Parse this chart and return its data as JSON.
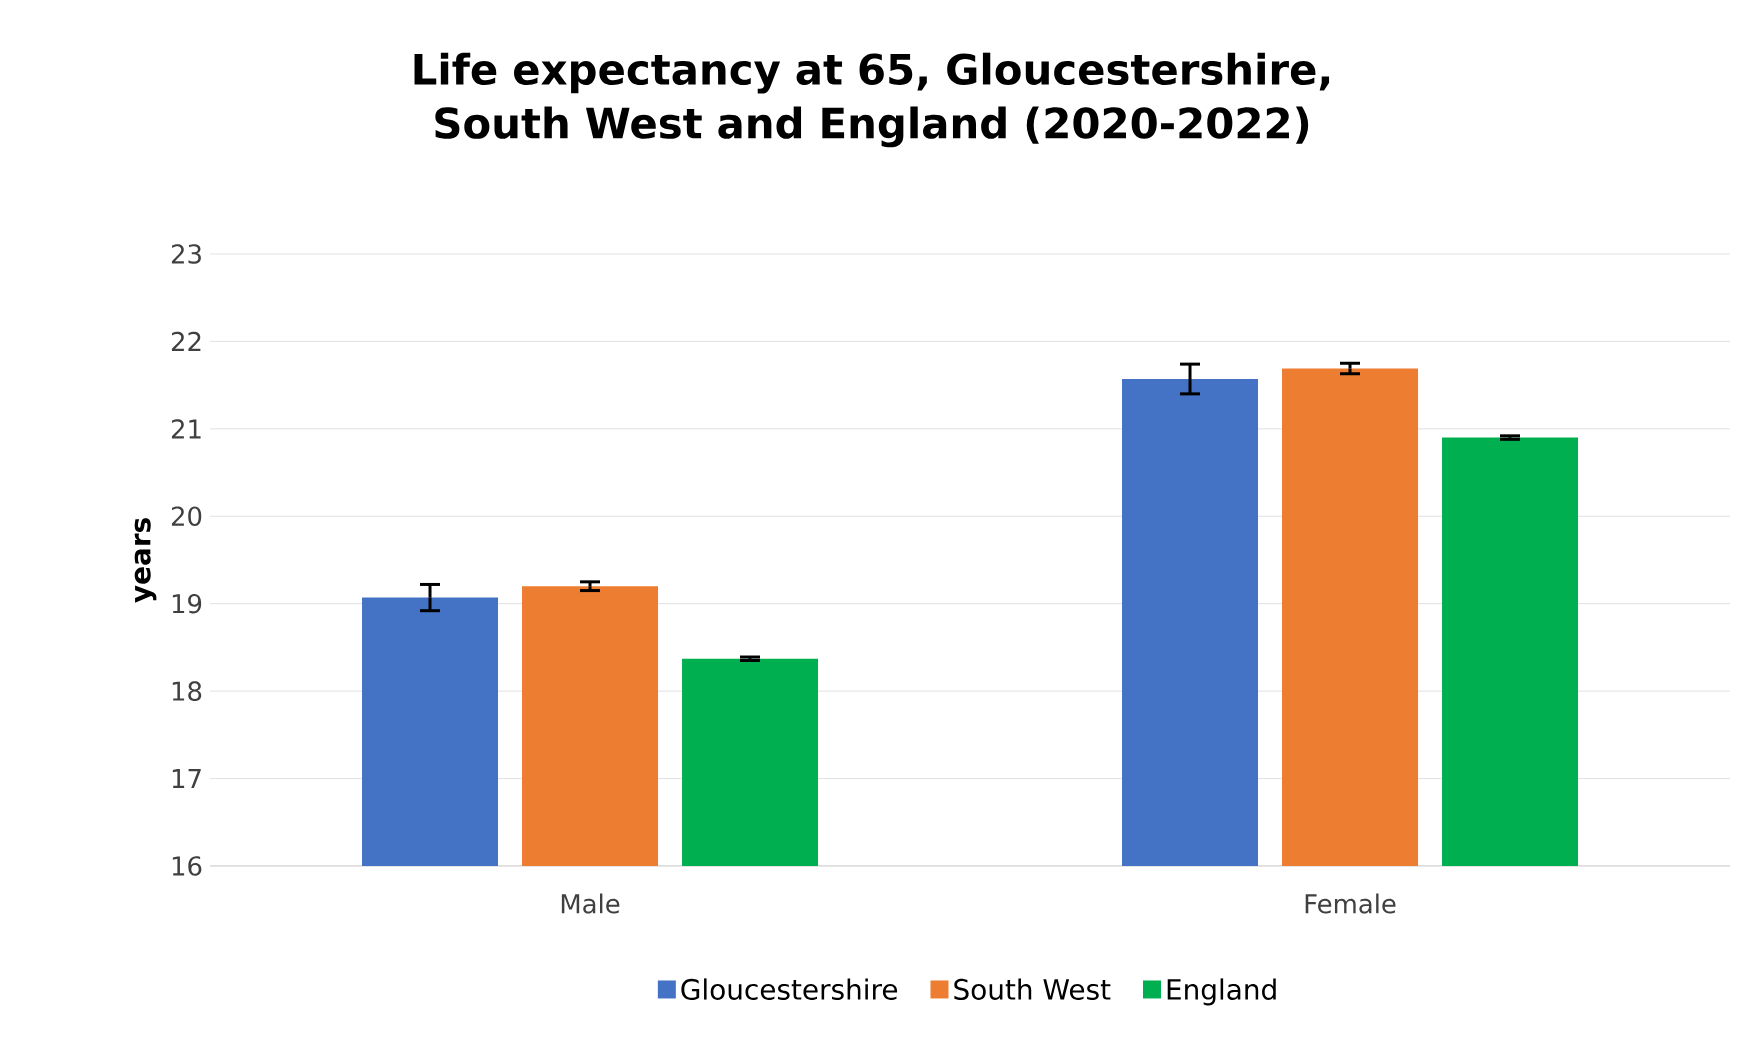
{
  "chart_data": {
    "type": "bar",
    "title": "Life expectancy at 65, Gloucestershire, South West and England (2020-2022)",
    "ylabel": "years",
    "categories": [
      "Male",
      "Female"
    ],
    "series": [
      {
        "name": "Gloucestershire",
        "color": "#4472c4",
        "values": [
          19.07,
          21.57
        ],
        "errors": [
          0.15,
          0.17
        ]
      },
      {
        "name": "South West",
        "color": "#ed7d31",
        "values": [
          19.2,
          21.69
        ],
        "errors": [
          0.05,
          0.06
        ]
      },
      {
        "name": "England",
        "color": "#00b050",
        "values": [
          18.37,
          20.9
        ],
        "errors": [
          0.02,
          0.02
        ]
      }
    ],
    "ylim": [
      16,
      23
    ],
    "yticks": [
      16,
      17,
      18,
      19,
      20,
      21,
      22,
      23
    ],
    "grid": "y",
    "legend": "bottom"
  }
}
